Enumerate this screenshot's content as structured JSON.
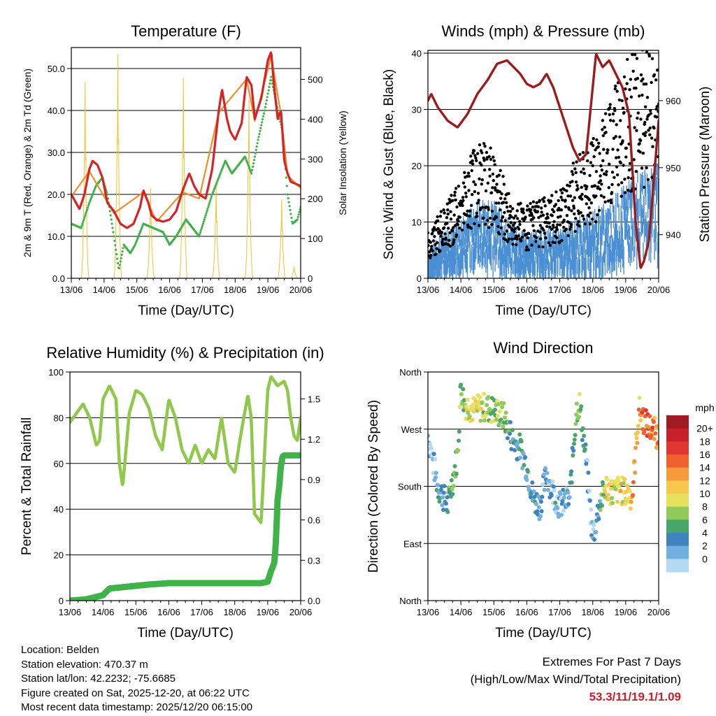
{
  "colors": {
    "temp_line": "#d62426",
    "temp9m_line": "#f28c28",
    "dewpoint_dots": "#3fb24a",
    "solar_line": "#f2c12e",
    "wind_dots": "#4a8fd4",
    "gust_dots": "#000000",
    "pressure_line": "#9b1c1c",
    "rh_line": "#8fc84a",
    "precip_line": "#3fb24a",
    "extremes_text": "#c8202a"
  },
  "x_axis": {
    "ticks": [
      "13/06",
      "14/06",
      "15/06",
      "16/06",
      "17/06",
      "18/06",
      "19/06",
      "20/06"
    ],
    "label": "Time (Day/UTC)"
  },
  "chart_data": [
    {
      "id": "temperature",
      "type": "line",
      "title": "Temperature (F)",
      "xlabel": "Time (Day/UTC)",
      "ylabel": "2m & 9m T (Red, Orange) & 2m Td (Green)",
      "ylabel_right": "Solar Insolation (Yellow)",
      "x_unit": "days since 13/06 00 UTC",
      "xlim": [
        0,
        7
      ],
      "ylim": [
        0,
        55
      ],
      "yticks": [
        0,
        10,
        20,
        30,
        40,
        50
      ],
      "ytick_labels": [
        "0.0",
        "10.0",
        "20.0",
        "30.0",
        "40.0",
        "50.0"
      ],
      "ylim_right": [
        0,
        580
      ],
      "yticks_right": [
        0,
        100,
        200,
        300,
        400,
        500
      ],
      "series": [
        {
          "name": "2m T",
          "style": "line",
          "x": [
            0,
            0.25,
            0.4,
            0.55,
            0.65,
            0.8,
            0.95,
            1.1,
            1.3,
            1.5,
            1.7,
            1.9,
            2.1,
            2.2,
            2.35,
            2.45,
            2.6,
            2.8,
            3.0,
            3.2,
            3.4,
            3.6,
            3.75,
            3.9,
            4.1,
            4.3,
            4.5,
            4.6,
            4.75,
            4.85,
            5.0,
            5.2,
            5.35,
            5.5,
            5.6,
            5.8,
            6.0,
            6.1,
            6.2,
            6.3,
            6.4,
            6.5,
            6.6,
            6.7,
            6.85,
            7.0
          ],
          "y": [
            20,
            16.5,
            20,
            26,
            28,
            27,
            24,
            18,
            16,
            13,
            12,
            13,
            17,
            21,
            18,
            15,
            14,
            13.5,
            14,
            16,
            21,
            25,
            22,
            20,
            19,
            26,
            40,
            45,
            38,
            35,
            33,
            37,
            48,
            46,
            38,
            43,
            52,
            54,
            45,
            38,
            40,
            28,
            25,
            23,
            22.5,
            22
          ]
        },
        {
          "name": "9m T",
          "style": "line",
          "x": [
            0,
            0.55,
            1.3,
            2.2,
            2.6,
            3.4,
            3.9,
            4.5,
            5.35,
            5.6,
            6.1,
            6.4,
            6.6,
            7.0
          ],
          "y": [
            19.5,
            25.5,
            15.5,
            20.5,
            13.5,
            20.5,
            19,
            39.5,
            47.5,
            37.5,
            53,
            39,
            24.5,
            21.5
          ]
        },
        {
          "name": "2m Td",
          "style": "dots",
          "x": [
            0,
            0.3,
            0.55,
            0.75,
            0.95,
            1.1,
            1.3,
            1.45,
            1.6,
            1.8,
            1.95,
            2.2,
            2.5,
            2.8,
            3.0,
            3.2,
            3.5,
            3.7,
            3.9,
            4.1,
            4.3,
            4.5,
            4.7,
            4.9,
            5.1,
            5.3,
            5.5,
            5.7,
            5.9,
            6.1,
            6.3,
            6.45,
            6.6,
            6.75,
            6.9,
            7.0
          ],
          "y": [
            13,
            12,
            18,
            22,
            24,
            20,
            10,
            2,
            8,
            6,
            8,
            13,
            12,
            11,
            8,
            10,
            14,
            12,
            10,
            15,
            20,
            24,
            28,
            25,
            27,
            29,
            25,
            33,
            40,
            48,
            40,
            35,
            20,
            13,
            14,
            17
          ]
        },
        {
          "name": "Solar Insolation",
          "style": "spikes",
          "axis": "right",
          "x": [
            0.42,
            1.42,
            2.42,
            3.42,
            4.42,
            5.42,
            6.42,
            6.8
          ],
          "y": [
            500,
            570,
            230,
            510,
            235,
            455,
            200,
            30
          ],
          "width_days": 0.25
        }
      ]
    },
    {
      "id": "winds",
      "type": "scatter",
      "title": "Winds (mph) & Pressure (mb)",
      "xlabel": "Time (Day/UTC)",
      "ylabel": "Sonic Wind & Gust (Blue, Black)",
      "ylabel_right": "Station Pressure (Maroon)",
      "xlim": [
        0,
        7
      ],
      "ylim": [
        0,
        40.5
      ],
      "yticks": [
        0,
        10,
        20,
        30,
        40
      ],
      "ylim_right": [
        933.5,
        967.5
      ],
      "yticks_right": [
        940,
        950,
        960
      ],
      "series": [
        {
          "name": "Sonic Wind",
          "style": "band",
          "x": [
            0,
            0.5,
            1.0,
            1.5,
            2.0,
            2.5,
            3.0,
            3.5,
            4.0,
            4.5,
            5.0,
            5.5,
            6.0,
            6.5,
            7.0
          ],
          "y": [
            3,
            6,
            7,
            9,
            9,
            7,
            5,
            6,
            6,
            7,
            8,
            9,
            11,
            13,
            14
          ]
        },
        {
          "name": "Gust",
          "style": "dots",
          "x": [
            0,
            0.5,
            1.0,
            1.5,
            2.0,
            2.5,
            3.0,
            3.5,
            4.0,
            4.5,
            5.0,
            5.5,
            6.0,
            6.5,
            7.0
          ],
          "y": [
            6,
            9,
            12,
            17,
            16,
            10,
            9,
            10,
            11,
            15,
            17,
            22,
            27,
            29,
            30
          ]
        },
        {
          "name": "Station Pressure",
          "style": "line",
          "axis": "right",
          "x": [
            0,
            0.1,
            0.3,
            0.6,
            0.9,
            1.2,
            1.5,
            1.8,
            2.1,
            2.4,
            2.8,
            3.0,
            3.2,
            3.4,
            3.6,
            3.8,
            4.0,
            4.2,
            4.4,
            4.6,
            4.8,
            5.0,
            5.1,
            5.3,
            5.5,
            5.7,
            5.9,
            6.1,
            6.2,
            6.3,
            6.45,
            6.55,
            6.7,
            6.85,
            7.0
          ],
          "y": [
            960,
            961,
            959,
            957,
            956,
            958,
            961,
            963,
            965.5,
            966,
            964,
            962.5,
            962,
            962.5,
            964,
            962,
            959,
            956,
            953,
            951,
            952,
            962,
            967,
            965,
            966,
            964,
            962,
            958,
            950,
            942,
            935,
            936,
            939,
            948,
            957
          ]
        }
      ]
    },
    {
      "id": "humidity",
      "type": "line",
      "title": "Relative Humidity (%) & Precipitation (in)",
      "xlabel": "Time (Day/UTC)",
      "ylabel": "Percent & Total Rainfall",
      "xlim": [
        0,
        7
      ],
      "ylim": [
        0,
        100
      ],
      "yticks": [
        0,
        20,
        40,
        60,
        80,
        100
      ],
      "ylim_right": [
        0,
        1.7
      ],
      "yticks_right": [
        0.0,
        0.3,
        0.6,
        0.9,
        1.2,
        1.5
      ],
      "ytick_labels_right": [
        "0.0",
        "0.3",
        "0.6",
        "0.9",
        "1.2",
        "1.5"
      ],
      "series": [
        {
          "name": "Relative Humidity",
          "style": "line",
          "x": [
            0,
            0.2,
            0.4,
            0.6,
            0.8,
            0.9,
            1.0,
            1.2,
            1.4,
            1.5,
            1.6,
            1.8,
            2.0,
            2.2,
            2.4,
            2.6,
            2.8,
            3.0,
            3.2,
            3.4,
            3.6,
            3.8,
            4.0,
            4.2,
            4.4,
            4.6,
            4.8,
            5.0,
            5.2,
            5.4,
            5.5,
            5.6,
            5.8,
            6.0,
            6.1,
            6.3,
            6.5,
            6.6,
            6.7,
            6.8,
            6.9,
            7.0
          ],
          "y": [
            78,
            82,
            86,
            80,
            68,
            70,
            88,
            94,
            88,
            60,
            50,
            82,
            92,
            90,
            84,
            72,
            66,
            88,
            80,
            66,
            60,
            68,
            60,
            66,
            62,
            80,
            60,
            56,
            74,
            90,
            80,
            38,
            34,
            92,
            98,
            94,
            96,
            92,
            80,
            72,
            70,
            80
          ]
        },
        {
          "name": "Total Rainfall",
          "style": "thick_line",
          "axis": "right",
          "x": [
            0,
            0.5,
            1.0,
            1.2,
            1.6,
            2.0,
            2.4,
            3.0,
            4.0,
            5.0,
            5.8,
            6.0,
            6.1,
            6.2,
            6.25,
            6.3,
            6.35,
            6.4,
            6.45,
            6.5,
            6.6,
            7.0
          ],
          "y": [
            0.0,
            0.01,
            0.04,
            0.09,
            0.1,
            0.11,
            0.12,
            0.13,
            0.13,
            0.13,
            0.13,
            0.14,
            0.22,
            0.28,
            0.44,
            0.75,
            0.85,
            1.0,
            1.07,
            1.08,
            1.08,
            1.08
          ]
        }
      ]
    },
    {
      "id": "direction",
      "type": "scatter",
      "title": "Wind Direction",
      "xlabel": "Time (Day/UTC)",
      "ylabel": "Direction (Colored By Speed)",
      "xlim": [
        0,
        7
      ],
      "ylim": [
        0,
        360
      ],
      "yticks": [
        0,
        90,
        180,
        270,
        360
      ],
      "ytick_labels": [
        "North",
        "East",
        "South",
        "West",
        "North"
      ],
      "colorbar": {
        "title": "mph",
        "labels": [
          "20+",
          "18",
          "16",
          "14",
          "12",
          "10",
          "8",
          "6",
          "4",
          "2",
          "0"
        ],
        "colors": [
          "#a11a1f",
          "#c8202a",
          "#e0362f",
          "#f0612f",
          "#f79a3c",
          "#f7c64a",
          "#e6e260",
          "#8fca5a",
          "#4aa56a",
          "#3f83c0",
          "#72b0e0",
          "#b4daf3"
        ]
      },
      "series": [
        {
          "name": "direction",
          "x": [
            0,
            0.3,
            0.6,
            0.9,
            1.0,
            1.1,
            1.4,
            1.7,
            2.0,
            2.3,
            2.6,
            2.8,
            3.0,
            3.2,
            3.4,
            3.6,
            3.8,
            4.0,
            4.3,
            4.5,
            4.6,
            4.8,
            5.0,
            5.2,
            5.4,
            5.6,
            5.8,
            6.0,
            6.2,
            6.4,
            6.6,
            6.8,
            7.0
          ],
          "y": [
            260,
            180,
            150,
            230,
            340,
            310,
            300,
            305,
            300,
            290,
            250,
            240,
            210,
            160,
            150,
            200,
            170,
            150,
            160,
            300,
            310,
            220,
            100,
            150,
            180,
            170,
            175,
            170,
            165,
            300,
            280,
            270,
            260
          ],
          "speed": [
            2,
            4,
            6,
            8,
            9,
            10,
            11,
            10,
            9,
            8,
            6,
            5,
            4,
            5,
            4,
            3,
            4,
            3,
            4,
            10,
            9,
            4,
            2,
            6,
            11,
            11,
            12,
            12,
            14,
            14,
            18,
            16,
            14
          ]
        }
      ]
    }
  ],
  "info": {
    "location": "Location: Belden",
    "elevation": "Station elevation: 470.37 m",
    "latlon": "Station lat/lon: 42.2232; -75.6685",
    "created": "Figure created on Sat, 2025-12-20, at 06:22 UTC",
    "recent": "Most recent data timestamp: 2025/12/20 06:15:00"
  },
  "extremes": {
    "title": "Extremes For Past 7 Days",
    "subtitle": "(High/Low/Max Wind/Total Precipitation)",
    "values": "53.3/11/19.1/1.09"
  }
}
